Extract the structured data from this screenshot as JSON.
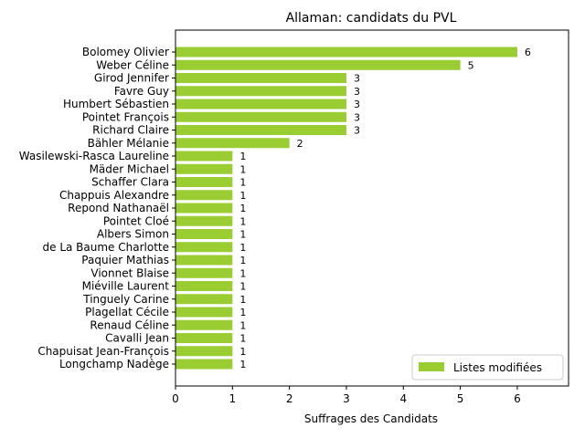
{
  "chart_data": {
    "type": "bar",
    "orientation": "horizontal",
    "title": "Allaman: candidats du PVL",
    "xlabel": "Suffrages des Candidats",
    "ylabel": "",
    "xlim": [
      0,
      6.9
    ],
    "xticks": [
      0,
      1,
      2,
      3,
      4,
      5,
      6
    ],
    "grid": false,
    "legend_position": "bottom-right",
    "categories": [
      "Bolomey Olivier",
      "Weber Céline",
      "Girod Jennifer",
      "Favre Guy",
      "Humbert Sébastien",
      "Pointet François",
      "Richard Claire",
      "Bähler Mélanie",
      "Wasilewski-Rasca Laureline",
      "Mäder Michael",
      "Schaffer Clara",
      "Chappuis Alexandre",
      "Repond Nathanaël",
      "Pointet Cloé",
      "Albers Simon",
      "de La Baume Charlotte",
      "Paquier Mathias",
      "Vionnet Blaise",
      "Miéville Laurent",
      "Tinguely Carine",
      "Plagellat Cécile",
      "Renaud Céline",
      "Cavalli Jean",
      "Chapuisat Jean-François",
      "Longchamp Nadège"
    ],
    "series": [
      {
        "name": "Listes modifiées",
        "color": "#9acd32",
        "values": [
          6,
          5,
          3,
          3,
          3,
          3,
          3,
          2,
          1,
          1,
          1,
          1,
          1,
          1,
          1,
          1,
          1,
          1,
          1,
          1,
          1,
          1,
          1,
          1,
          1
        ]
      }
    ]
  }
}
